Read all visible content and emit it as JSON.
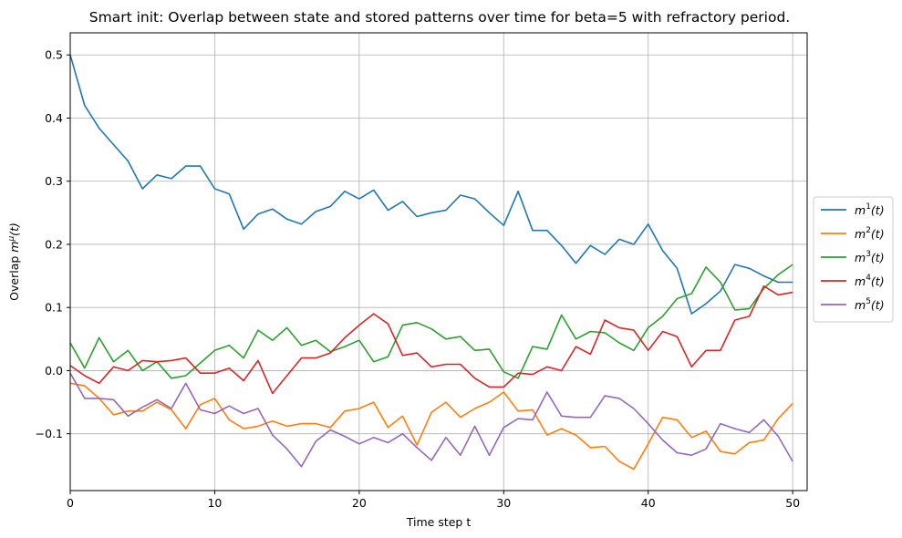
{
  "chart_data": {
    "type": "line",
    "title": "Smart init: Overlap between state and stored patterns over time for beta=5 with refractory period.",
    "xlabel": "Time step t",
    "ylabel": "Overlap m^μ(t)",
    "xlim": [
      0,
      51
    ],
    "ylim": [
      -0.19,
      0.535
    ],
    "xticks": [
      0,
      10,
      20,
      30,
      40,
      50
    ],
    "yticks": [
      -0.1,
      0.0,
      0.1,
      0.2,
      0.3,
      0.4,
      0.5
    ],
    "ytick_labels": [
      "−0.1",
      "0.0",
      "0.1",
      "0.2",
      "0.3",
      "0.4",
      "0.5"
    ],
    "grid": true,
    "legend_position": "right",
    "x": [
      0,
      1,
      2,
      3,
      4,
      5,
      6,
      7,
      8,
      9,
      10,
      11,
      12,
      13,
      14,
      15,
      16,
      17,
      18,
      19,
      20,
      21,
      22,
      23,
      24,
      25,
      26,
      27,
      28,
      29,
      30,
      31,
      32,
      33,
      34,
      35,
      36,
      37,
      38,
      39,
      40,
      41,
      42,
      43,
      44,
      45,
      46,
      47,
      48,
      49,
      50
    ],
    "series": [
      {
        "name": "m",
        "sup": "1",
        "suffix": "(t)",
        "color": "#1f77b4",
        "values": [
          0.5,
          0.42,
          0.384,
          0.358,
          0.332,
          0.288,
          0.31,
          0.304,
          0.324,
          0.324,
          0.288,
          0.28,
          0.224,
          0.248,
          0.256,
          0.24,
          0.232,
          0.252,
          0.26,
          0.284,
          0.272,
          0.286,
          0.254,
          0.268,
          0.244,
          0.25,
          0.254,
          0.278,
          0.272,
          0.25,
          0.23,
          0.284,
          0.222,
          0.222,
          0.198,
          0.17,
          0.198,
          0.184,
          0.208,
          0.2,
          0.232,
          0.19,
          0.162,
          0.09,
          0.106,
          0.126,
          0.168,
          0.162,
          0.15,
          0.14,
          0.14
        ]
      },
      {
        "name": "m",
        "sup": "2",
        "suffix": "(t)",
        "color": "#ff7f0e",
        "values": [
          -0.02,
          -0.024,
          -0.044,
          -0.07,
          -0.064,
          -0.064,
          -0.05,
          -0.062,
          -0.092,
          -0.054,
          -0.044,
          -0.078,
          -0.092,
          -0.088,
          -0.08,
          -0.088,
          -0.084,
          -0.084,
          -0.09,
          -0.064,
          -0.06,
          -0.05,
          -0.09,
          -0.072,
          -0.118,
          -0.066,
          -0.05,
          -0.074,
          -0.06,
          -0.05,
          -0.034,
          -0.064,
          -0.062,
          -0.102,
          -0.092,
          -0.102,
          -0.122,
          -0.12,
          -0.144,
          -0.156,
          -0.116,
          -0.074,
          -0.078,
          -0.106,
          -0.096,
          -0.128,
          -0.132,
          -0.114,
          -0.11,
          -0.076,
          -0.052
        ]
      },
      {
        "name": "m",
        "sup": "3",
        "suffix": "(t)",
        "color": "#2ca02c",
        "values": [
          0.044,
          0.004,
          0.052,
          0.014,
          0.032,
          0.0,
          0.014,
          -0.012,
          -0.008,
          0.012,
          0.032,
          0.04,
          0.02,
          0.064,
          0.048,
          0.068,
          0.04,
          0.048,
          0.03,
          0.038,
          0.048,
          0.014,
          0.022,
          0.072,
          0.076,
          0.066,
          0.05,
          0.054,
          0.032,
          0.034,
          -0.002,
          -0.012,
          0.038,
          0.034,
          0.088,
          0.05,
          0.062,
          0.06,
          0.044,
          0.032,
          0.068,
          0.086,
          0.114,
          0.122,
          0.164,
          0.14,
          0.096,
          0.098,
          0.13,
          0.152,
          0.168
        ]
      },
      {
        "name": "m",
        "sup": "4",
        "suffix": "(t)",
        "color": "#d62728",
        "values": [
          0.008,
          -0.008,
          -0.02,
          0.006,
          0.0,
          0.016,
          0.014,
          0.016,
          0.02,
          -0.004,
          -0.004,
          0.004,
          -0.016,
          0.016,
          -0.036,
          -0.008,
          0.02,
          0.02,
          0.028,
          0.052,
          0.072,
          0.09,
          0.074,
          0.024,
          0.028,
          0.006,
          0.01,
          0.01,
          -0.012,
          -0.026,
          -0.026,
          -0.004,
          -0.006,
          0.006,
          0.0,
          0.038,
          0.026,
          0.08,
          0.068,
          0.064,
          0.032,
          0.062,
          0.054,
          0.006,
          0.032,
          0.032,
          0.08,
          0.086,
          0.134,
          0.12,
          0.124
        ]
      },
      {
        "name": "m",
        "sup": "5",
        "suffix": "(t)",
        "color": "#9467bd",
        "values": [
          -0.004,
          -0.044,
          -0.044,
          -0.046,
          -0.072,
          -0.058,
          -0.046,
          -0.06,
          -0.02,
          -0.062,
          -0.068,
          -0.056,
          -0.068,
          -0.06,
          -0.102,
          -0.124,
          -0.152,
          -0.112,
          -0.094,
          -0.104,
          -0.116,
          -0.106,
          -0.114,
          -0.1,
          -0.122,
          -0.142,
          -0.106,
          -0.134,
          -0.088,
          -0.134,
          -0.09,
          -0.076,
          -0.078,
          -0.034,
          -0.072,
          -0.074,
          -0.074,
          -0.04,
          -0.044,
          -0.06,
          -0.084,
          -0.11,
          -0.13,
          -0.134,
          -0.124,
          -0.084,
          -0.092,
          -0.098,
          -0.078,
          -0.104,
          -0.144
        ]
      }
    ]
  }
}
